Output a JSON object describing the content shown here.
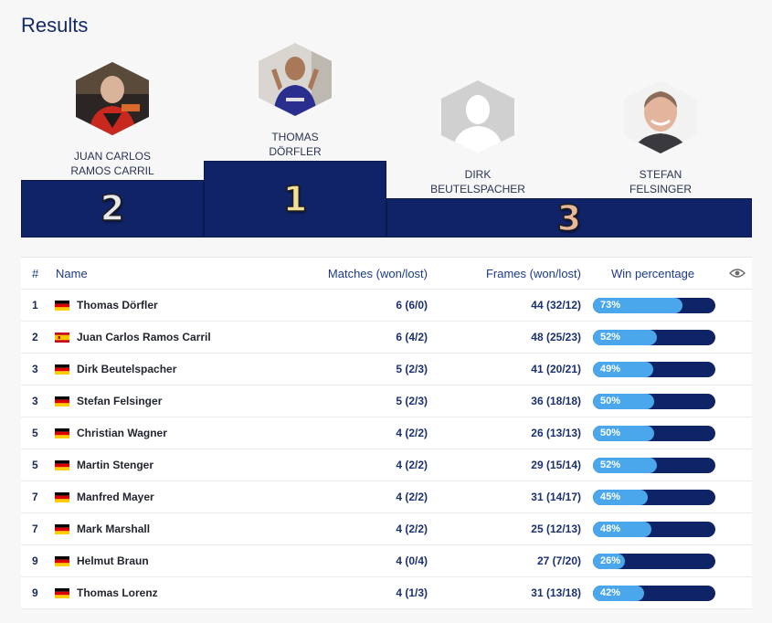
{
  "title": "Results",
  "podium": [
    {
      "rank": "2",
      "name_line1": "JUAN CARLOS",
      "name_line2": "RAMOS CARRIL",
      "photo": "player-photo"
    },
    {
      "rank": "1",
      "name_line1": "THOMAS",
      "name_line2": "DÖRFLER",
      "photo": "player-photo"
    },
    {
      "rank": "3",
      "name_line1": "DIRK",
      "name_line2": "BEUTELSPACHER",
      "photo": "placeholder-avatar"
    },
    {
      "rank": "",
      "name_line1": "STEFAN",
      "name_line2": "FELSINGER",
      "photo": "player-photo"
    }
  ],
  "table": {
    "headers": {
      "num": "#",
      "name": "Name",
      "matches": "Matches (won/lost)",
      "frames": "Frames (won/lost)",
      "win": "Win percentage",
      "visibility_icon": "eye-icon"
    },
    "rows": [
      {
        "num": "1",
        "flag": "de",
        "name": "Thomas Dörfler",
        "matches": "6 (6/0)",
        "frames": "44 (32/12)",
        "pct_label": "73%",
        "pct": 73
      },
      {
        "num": "2",
        "flag": "es",
        "name": "Juan Carlos Ramos Carril",
        "matches": "6 (4/2)",
        "frames": "48 (25/23)",
        "pct_label": "52%",
        "pct": 52
      },
      {
        "num": "3",
        "flag": "de",
        "name": "Dirk Beutelspacher",
        "matches": "5 (2/3)",
        "frames": "41 (20/21)",
        "pct_label": "49%",
        "pct": 49
      },
      {
        "num": "3",
        "flag": "de",
        "name": "Stefan Felsinger",
        "matches": "5 (2/3)",
        "frames": "36 (18/18)",
        "pct_label": "50%",
        "pct": 50
      },
      {
        "num": "5",
        "flag": "de",
        "name": "Christian Wagner",
        "matches": "4 (2/2)",
        "frames": "26 (13/13)",
        "pct_label": "50%",
        "pct": 50
      },
      {
        "num": "5",
        "flag": "de",
        "name": "Martin Stenger",
        "matches": "4 (2/2)",
        "frames": "29 (15/14)",
        "pct_label": "52%",
        "pct": 52
      },
      {
        "num": "7",
        "flag": "de",
        "name": "Manfred Mayer",
        "matches": "4 (2/2)",
        "frames": "31 (14/17)",
        "pct_label": "45%",
        "pct": 45
      },
      {
        "num": "7",
        "flag": "de",
        "name": "Mark Marshall",
        "matches": "4 (2/2)",
        "frames": "25 (12/13)",
        "pct_label": "48%",
        "pct": 48
      },
      {
        "num": "9",
        "flag": "de",
        "name": "Helmut Braun",
        "matches": "4 (0/4)",
        "frames": "27 (7/20)",
        "pct_label": "26%",
        "pct": 26
      },
      {
        "num": "9",
        "flag": "de",
        "name": "Thomas Lorenz",
        "matches": "4 (1/3)",
        "frames": "31 (13/18)",
        "pct_label": "42%",
        "pct": 42
      }
    ]
  },
  "colors": {
    "navy": "#102366",
    "bar_fill": "#4aa7ec",
    "gold": "#f3df9a",
    "silver": "#e9e9ec",
    "bronze": "#e8b89a"
  }
}
